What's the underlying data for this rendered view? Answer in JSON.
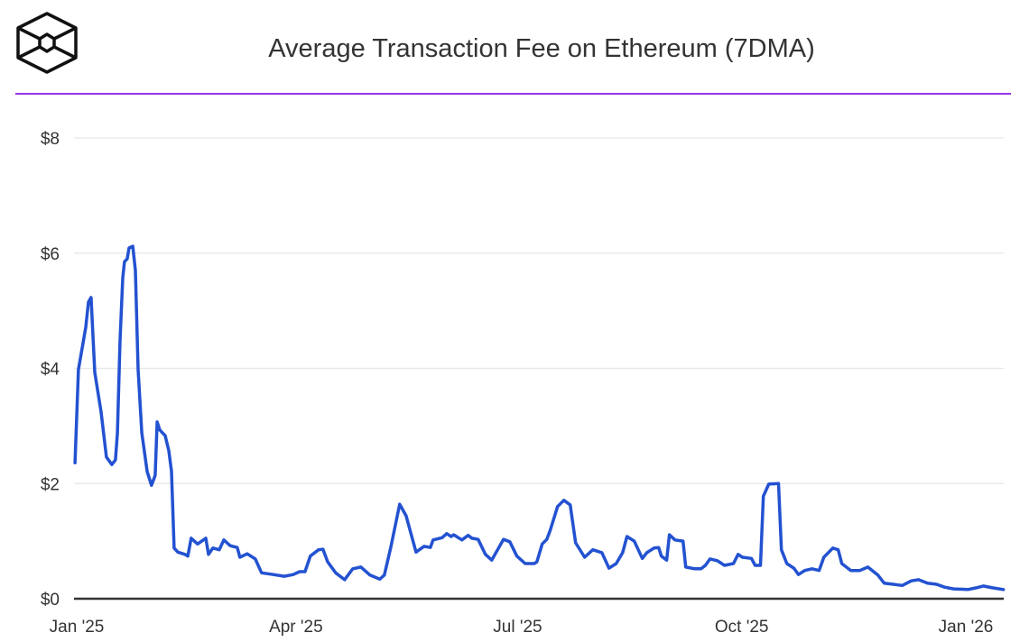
{
  "brand": {
    "logo_icon": "hexagon-cube-logo-icon"
  },
  "colors": {
    "line": "#2352d1",
    "accent_rule": "#9b34ef",
    "grid": "#e6e6e6",
    "axis": "#333333"
  },
  "chart_data": {
    "type": "line",
    "title": "Average Transaction Fee on Ethereum (7DMA)",
    "xlabel": "",
    "ylabel": "",
    "x_unit": "days since Jan 1 2025",
    "xlim": [
      -1,
      381
    ],
    "ylim": [
      0,
      8
    ],
    "grid": true,
    "y_ticks": [
      {
        "value": 0,
        "label": "$0"
      },
      {
        "value": 2,
        "label": "$2"
      },
      {
        "value": 4,
        "label": "$4"
      },
      {
        "value": 6,
        "label": "$6"
      },
      {
        "value": 8,
        "label": "$8"
      }
    ],
    "x_ticks": [
      {
        "value": 0,
        "label": "Jan '25"
      },
      {
        "value": 90,
        "label": "Apr '25"
      },
      {
        "value": 181,
        "label": "Jul '25"
      },
      {
        "value": 273,
        "label": "Oct '25"
      },
      {
        "value": 365,
        "label": "Jan '26"
      }
    ],
    "series": [
      {
        "name": "Average Transaction Fee (7DMA)",
        "x": [
          -0.7,
          0.7,
          2.6,
          3.7,
          4.8,
          5.9,
          7.4,
          10.0,
          12.2,
          14.4,
          15.9,
          16.7,
          17.8,
          18.9,
          19.6,
          20.7,
          21.5,
          23.0,
          24.1,
          25.2,
          26.7,
          28.9,
          30.7,
          32.2,
          33.0,
          34.1,
          36.3,
          37.8,
          38.9,
          40.0,
          41.5,
          44.4,
          45.6,
          47.0,
          49.6,
          53.0,
          54.1,
          55.9,
          58.5,
          60.4,
          63.0,
          65.9,
          67.0,
          70.0,
          73.3,
          75.9,
          80.7,
          85.2,
          88.9,
          91.5,
          93.7,
          95.9,
          99.3,
          101.1,
          103.0,
          106.3,
          110.0,
          113.3,
          116.7,
          120.4,
          124.4,
          126.3,
          128.9,
          132.6,
          135.2,
          139.3,
          142.6,
          145.2,
          146.3,
          150.0,
          151.9,
          153.7,
          154.8,
          158.1,
          160.7,
          162.2,
          164.8,
          167.8,
          170.4,
          173.3,
          175.2,
          177.8,
          180.7,
          184.1,
          187.8,
          188.9,
          191.1,
          193.0,
          194.4,
          197.4,
          200.0,
          202.6,
          204.8,
          208.5,
          211.9,
          215.6,
          218.5,
          221.5,
          224.1,
          225.9,
          228.9,
          232.2,
          234.1,
          237.0,
          238.9,
          240.0,
          242.2,
          243.3,
          245.6,
          248.9,
          250.0,
          253.7,
          256.3,
          258.1,
          260.0,
          263.0,
          265.9,
          269.6,
          271.5,
          273.3,
          277.0,
          278.5,
          280.7,
          281.9,
          284.1,
          288.1,
          289.3,
          291.5,
          294.4,
          296.3,
          298.9,
          301.9,
          304.8,
          306.7,
          310.4,
          312.6,
          314.1,
          317.8,
          321.5,
          324.8,
          328.9,
          331.5,
          335.2,
          338.9,
          342.6,
          345.6,
          349.3,
          353.0,
          356.3,
          360.0,
          365.9,
          369.3,
          372.2,
          375.9,
          380.4
        ],
        "y": [
          2.36,
          3.98,
          4.44,
          4.71,
          5.15,
          5.23,
          3.93,
          3.24,
          2.46,
          2.33,
          2.41,
          2.88,
          4.49,
          5.57,
          5.85,
          5.9,
          6.09,
          6.12,
          5.7,
          3.98,
          2.88,
          2.21,
          1.97,
          2.14,
          3.07,
          2.93,
          2.83,
          2.57,
          2.21,
          0.88,
          0.81,
          0.77,
          0.74,
          1.05,
          0.95,
          1.05,
          0.77,
          0.88,
          0.85,
          1.02,
          0.92,
          0.89,
          0.72,
          0.78,
          0.69,
          0.45,
          0.42,
          0.39,
          0.42,
          0.47,
          0.47,
          0.74,
          0.85,
          0.86,
          0.64,
          0.45,
          0.33,
          0.52,
          0.55,
          0.41,
          0.34,
          0.41,
          0.89,
          1.64,
          1.44,
          0.81,
          0.91,
          0.89,
          1.02,
          1.06,
          1.13,
          1.08,
          1.11,
          1.02,
          1.1,
          1.05,
          1.03,
          0.77,
          0.67,
          0.89,
          1.03,
          0.99,
          0.74,
          0.61,
          0.61,
          0.64,
          0.95,
          1.03,
          1.19,
          1.6,
          1.71,
          1.63,
          0.97,
          0.72,
          0.85,
          0.8,
          0.53,
          0.61,
          0.8,
          1.08,
          1.0,
          0.7,
          0.8,
          0.88,
          0.89,
          0.74,
          0.67,
          1.11,
          1.02,
          1.0,
          0.55,
          0.52,
          0.52,
          0.58,
          0.69,
          0.66,
          0.58,
          0.61,
          0.77,
          0.72,
          0.7,
          0.58,
          0.58,
          1.78,
          1.99,
          2.0,
          0.85,
          0.61,
          0.53,
          0.42,
          0.49,
          0.52,
          0.49,
          0.72,
          0.88,
          0.85,
          0.61,
          0.49,
          0.49,
          0.55,
          0.41,
          0.27,
          0.25,
          0.23,
          0.31,
          0.33,
          0.27,
          0.25,
          0.2,
          0.17,
          0.16,
          0.19,
          0.22,
          0.19,
          0.16
        ]
      }
    ]
  }
}
